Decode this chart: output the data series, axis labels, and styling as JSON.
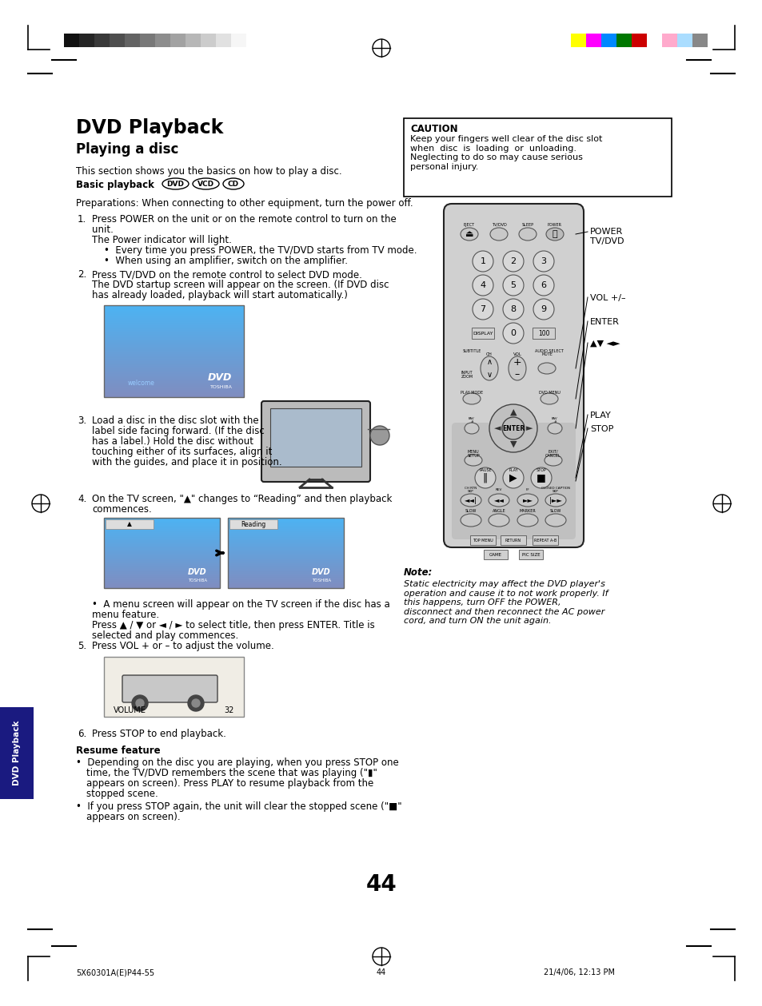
{
  "page_bg": "#ffffff",
  "title": "DVD Playback",
  "subtitle": "Playing a disc",
  "page_number": "44",
  "footer_left": "5X60301A(E)P44-55",
  "footer_center": "44",
  "footer_right": "21/4/06, 12:13 PM",
  "grayscale_bars": [
    "#111111",
    "#252525",
    "#393939",
    "#4e4e4e",
    "#636363",
    "#787878",
    "#8d8d8d",
    "#a2a2a2",
    "#b7b7b7",
    "#cccccc",
    "#e1e1e1",
    "#f6f6f6"
  ],
  "color_bars": [
    "#ffff00",
    "#ff00ff",
    "#0088ff",
    "#007700",
    "#cc0000",
    "#ffffff",
    "#ffaacc",
    "#aaddff",
    "#888888"
  ],
  "caution_title": "CAUTION",
  "caution_text": "Keep your fingers well clear of the disc slot\nwhen  disc  is  loading  or  unloading.\nNeglecting to do so may cause serious\npersonal injury.",
  "note_title": "Note:",
  "note_text": "Static electricity may affect the DVD player's\noperation and cause it to not work properly. If\nthis happens, turn OFF the POWER,\ndisconnect and then reconnect the AC power\ncord, and turn ON the unit again.",
  "sidebar_label": "DVD Playback",
  "right_label_power": "POWER\nTV/DVD",
  "right_label_vol": "VOL +/–",
  "right_label_enter": "ENTER",
  "right_label_arrows": "▲▼ ◄►",
  "right_label_play": "PLAY",
  "right_label_stop": "STOP"
}
